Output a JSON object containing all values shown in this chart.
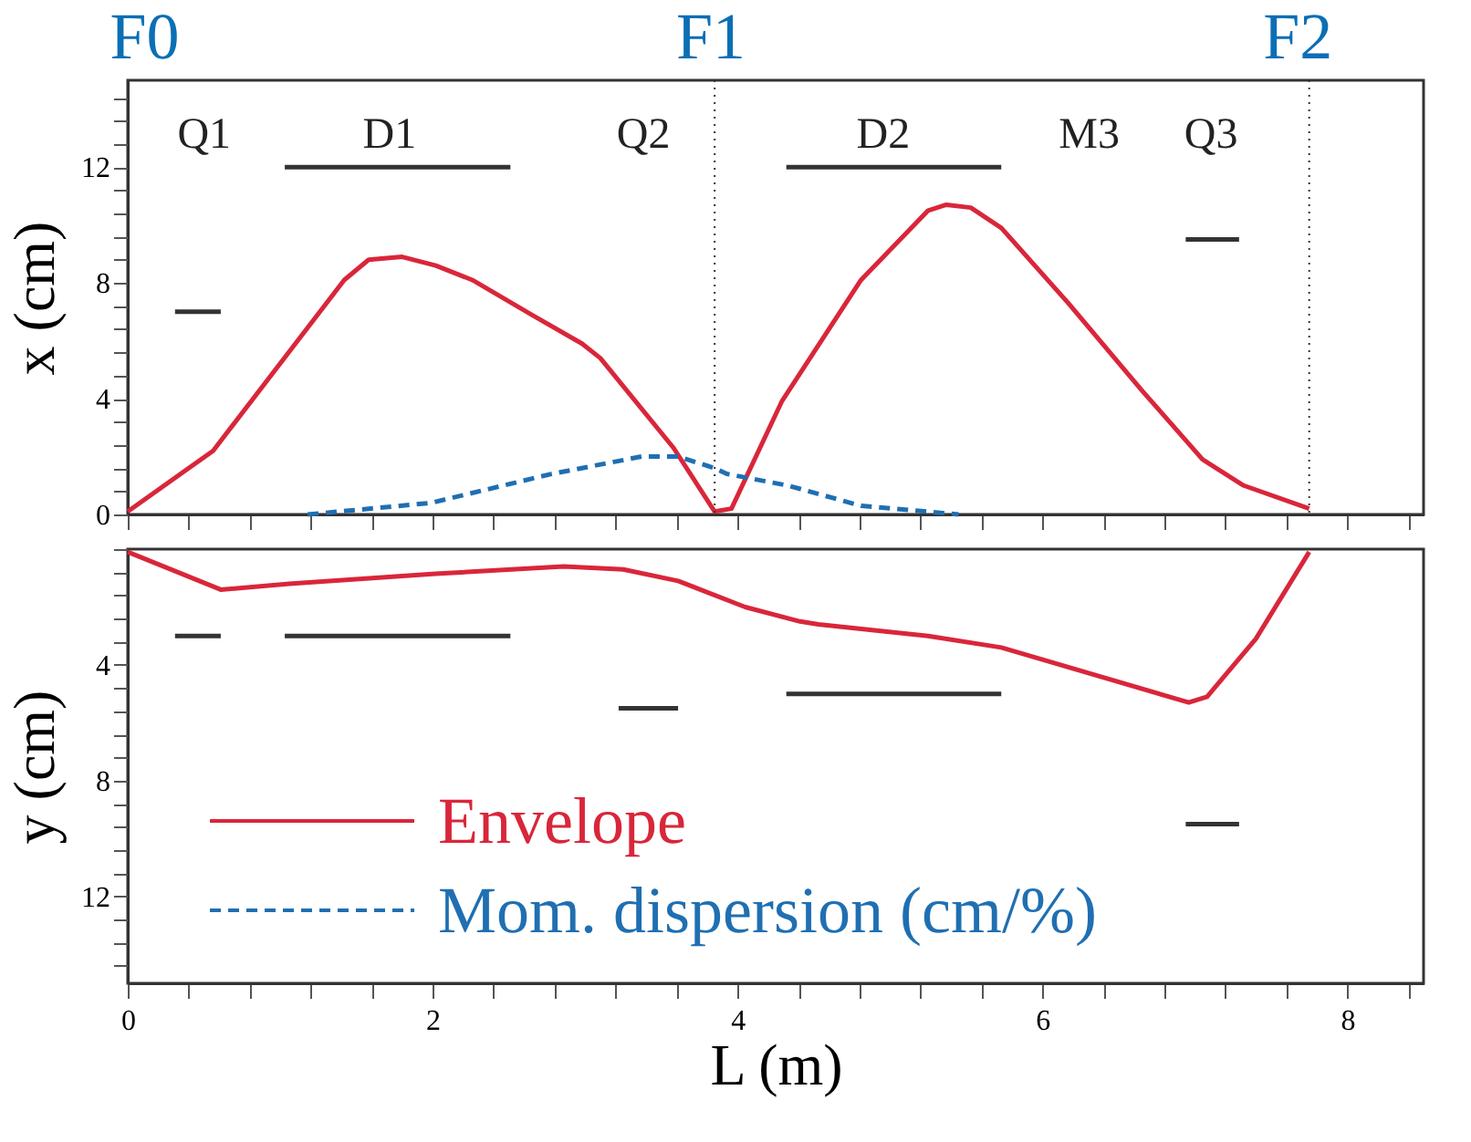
{
  "chart_data": [
    {
      "type": "line",
      "ylabel": "x (cm)",
      "xlim": [
        0,
        8.5
      ],
      "ylim": [
        0,
        15
      ],
      "tick_labels": "y",
      "grid": false,
      "legend": false,
      "marker": "none",
      "xticks": [
        0,
        {
          "value": 0.4,
          "label": null
        },
        {
          "value": 0.8,
          "label": null
        },
        {
          "value": 1.2,
          "label": null
        },
        {
          "value": 1.6,
          "label": null
        },
        {
          "value": 2,
          "label": null
        },
        {
          "value": 2.4,
          "label": null
        },
        {
          "value": 2.8,
          "label": null
        },
        {
          "value": 3.2,
          "label": null
        },
        {
          "value": 3.6,
          "label": null
        },
        {
          "value": 4,
          "label": null
        },
        {
          "value": 4.4,
          "label": null
        },
        {
          "value": 4.8,
          "label": null
        },
        {
          "value": 5.2,
          "label": null
        },
        {
          "value": 5.6,
          "label": null
        },
        {
          "value": 6,
          "label": null
        },
        {
          "value": 6.4,
          "label": null
        },
        {
          "value": 6.8,
          "label": null
        },
        {
          "value": 7.2,
          "label": null
        },
        {
          "value": 7.6,
          "label": null
        },
        {
          "value": 8,
          "label": null
        },
        {
          "value": 8.4,
          "label": null
        }
      ],
      "yticks": [
        0,
        {
          "value": 0.8,
          "label": null
        },
        {
          "value": 1.6,
          "label": null
        },
        {
          "value": 2.4,
          "label": null
        },
        {
          "value": 3.2,
          "label": null
        },
        4,
        {
          "value": 4.8,
          "label": null
        },
        {
          "value": 5.6,
          "label": null
        },
        {
          "value": 6.4,
          "label": null
        },
        {
          "value": 7.2,
          "label": null
        },
        8,
        {
          "value": 8.8,
          "label": null
        },
        {
          "value": 9.6,
          "label": null
        },
        {
          "value": 10.4,
          "label": null
        },
        {
          "value": 11.2,
          "label": null
        },
        12,
        {
          "value": 12.8,
          "label": null
        },
        {
          "value": 13.6,
          "label": null
        },
        {
          "value": 14.4,
          "label": null
        }
      ],
      "series": [
        {
          "color": "#d9263a",
          "line_style": "solid",
          "x": [
            0,
            0.56,
            1.42,
            1.58,
            1.8,
            2.02,
            2.26,
            2.65,
            2.98,
            3.1,
            3.58,
            3.85,
            3.96,
            4.29,
            4.81,
            5.25,
            5.37,
            5.53,
            5.73,
            6.17,
            6.65,
            7.05,
            7.32,
            7.75
          ],
          "values": [
            0.1,
            2.2,
            8.1,
            8.8,
            8.9,
            8.6,
            8.1,
            6.9,
            5.9,
            5.4,
            2.3,
            0.1,
            0.2,
            3.9,
            8.1,
            10.5,
            10.7,
            10.6,
            9.9,
            7.3,
            4.3,
            1.9,
            1.0,
            0.2
          ]
        },
        {
          "color": "#1f6fb2",
          "line_style": "dashed",
          "x": [
            1.18,
            1.99,
            2.78,
            3.37,
            3.61,
            3.85,
            3.93,
            4.33,
            4.81,
            5.45
          ],
          "values": [
            0,
            0.4,
            1.4,
            2.0,
            2.0,
            1.6,
            1.4,
            1.0,
            0.3,
            0
          ]
        },
        {
          "color": "#333333",
          "line_style": "solid",
          "x": [
            0.31,
            0.61
          ],
          "values": [
            7,
            7
          ]
        },
        {
          "color": "#333333",
          "line_style": "solid",
          "x": [
            1.03,
            2.51
          ],
          "values": [
            12,
            12
          ]
        },
        {
          "color": "#333333",
          "line_style": "solid",
          "x": [
            4.32,
            5.73
          ],
          "values": [
            12,
            12
          ]
        },
        {
          "color": "#333333",
          "line_style": "solid",
          "x": [
            6.94,
            7.29
          ],
          "values": [
            9.5,
            9.5
          ]
        }
      ],
      "ref_lines": [
        {
          "axis": "x",
          "value": 3.85,
          "line_style": "dotted"
        },
        {
          "axis": "x",
          "value": 7.75,
          "line_style": "dotted"
        }
      ],
      "annotations": [
        "F0",
        "F1",
        "F2",
        "Q1",
        "D1",
        "Q2",
        "D2",
        "M3",
        "Q3"
      ]
    },
    {
      "type": "line",
      "xlabel": "L (m)",
      "ylabel": "y (cm)",
      "xlim": [
        0,
        8.5
      ],
      "ylim": [
        15,
        0
      ],
      "grid": false,
      "legend": "bottom left",
      "marker": "none",
      "xticks": [
        0,
        {
          "value": 0.4,
          "label": null
        },
        {
          "value": 0.8,
          "label": null
        },
        {
          "value": 1.2,
          "label": null
        },
        {
          "value": 1.6,
          "label": null
        },
        2,
        {
          "value": 2.4,
          "label": null
        },
        {
          "value": 2.8,
          "label": null
        },
        {
          "value": 3.2,
          "label": null
        },
        {
          "value": 3.6,
          "label": null
        },
        4,
        {
          "value": 4.4,
          "label": null
        },
        {
          "value": 4.8,
          "label": null
        },
        {
          "value": 5.2,
          "label": null
        },
        {
          "value": 5.6,
          "label": null
        },
        6,
        {
          "value": 6.4,
          "label": null
        },
        {
          "value": 6.8,
          "label": null
        },
        {
          "value": 7.2,
          "label": null
        },
        {
          "value": 7.6,
          "label": null
        },
        8,
        {
          "value": 8.4,
          "label": null
        }
      ],
      "yticks": [
        {
          "value": 0,
          "label": null
        },
        {
          "value": 0.8,
          "label": null
        },
        {
          "value": 1.6,
          "label": null
        },
        {
          "value": 2.4,
          "label": null
        },
        {
          "value": 3.2,
          "label": null
        },
        4,
        {
          "value": 4.8,
          "label": null
        },
        {
          "value": 5.6,
          "label": null
        },
        {
          "value": 6.4,
          "label": null
        },
        {
          "value": 7.2,
          "label": null
        },
        8,
        {
          "value": 8.8,
          "label": null
        },
        {
          "value": 9.6,
          "label": null
        },
        {
          "value": 10.4,
          "label": null
        },
        {
          "value": 11.2,
          "label": null
        },
        12,
        {
          "value": 12.8,
          "label": null
        },
        {
          "value": 13.6,
          "label": null
        },
        {
          "value": 14.4,
          "label": null
        }
      ],
      "series": [
        {
          "name": "Envelope",
          "color": "#d9263a",
          "line_style": "solid",
          "x": [
            0,
            0.61,
            1.06,
            2.02,
            2.86,
            3.25,
            3.61,
            4.05,
            4.41,
            4.53,
            5.25,
            5.73,
            6.96,
            7.08,
            7.4,
            7.75
          ],
          "values": [
            0.1,
            1.4,
            1.2,
            0.85,
            0.6,
            0.7,
            1.1,
            2.0,
            2.5,
            2.6,
            3.0,
            3.4,
            5.3,
            5.1,
            3.1,
            0.1
          ]
        },
        {
          "name": "Mom. dispersion (cm/%)",
          "color": "#1f6fb2",
          "line_style": "dashed"
        },
        {
          "color": "#333333",
          "line_style": "solid",
          "x": [
            0.31,
            0.61
          ],
          "values": [
            3,
            3
          ]
        },
        {
          "color": "#333333",
          "line_style": "solid",
          "x": [
            1.03,
            2.51
          ],
          "values": [
            3,
            3
          ]
        },
        {
          "color": "#333333",
          "line_style": "solid",
          "x": [
            3.22,
            3.61
          ],
          "values": [
            5.5,
            5.5
          ]
        },
        {
          "color": "#333333",
          "line_style": "solid",
          "x": [
            4.32,
            5.73
          ],
          "values": [
            5,
            5
          ]
        },
        {
          "color": "#333333",
          "line_style": "solid",
          "x": [
            6.94,
            7.29
          ],
          "values": [
            9.5,
            9.5
          ]
        }
      ]
    }
  ]
}
